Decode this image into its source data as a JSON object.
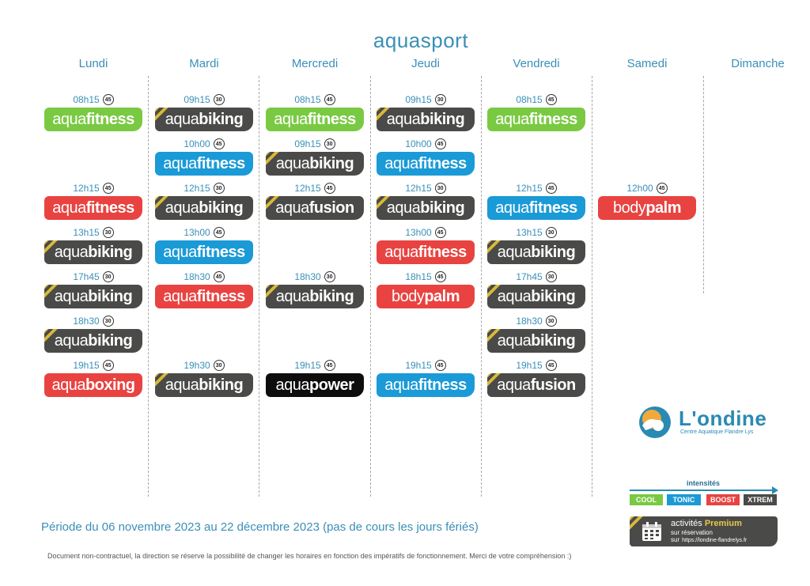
{
  "title": "aquasport",
  "days": [
    "Lundi",
    "Mardi",
    "Mercredi",
    "Jeudi",
    "Vendredi",
    "Samedi",
    "Dimanche"
  ],
  "slots": [
    {
      "day": 0,
      "row": 0,
      "time": "08h15",
      "duration": "45",
      "prefix": "aqua",
      "suffix": "fitness",
      "level": "cool"
    },
    {
      "day": 0,
      "row": 2,
      "time": "12h15",
      "duration": "45",
      "prefix": "aqua",
      "suffix": "fitness",
      "level": "boost"
    },
    {
      "day": 0,
      "row": 3,
      "time": "13h15",
      "duration": "30",
      "prefix": "aqua",
      "suffix": "biking",
      "level": "xtrem"
    },
    {
      "day": 0,
      "row": 4,
      "time": "17h45",
      "duration": "30",
      "prefix": "aqua",
      "suffix": "biking",
      "level": "xtrem"
    },
    {
      "day": 0,
      "row": 5,
      "time": "18h30",
      "duration": "30",
      "prefix": "aqua",
      "suffix": "biking",
      "level": "xtrem"
    },
    {
      "day": 0,
      "row": 6,
      "time": "19h15",
      "duration": "45",
      "prefix": "aqua",
      "suffix": "boxing",
      "level": "boost"
    },
    {
      "day": 1,
      "row": 0,
      "time": "09h15",
      "duration": "30",
      "prefix": "aqua",
      "suffix": "biking",
      "level": "xtrem"
    },
    {
      "day": 1,
      "row": 1,
      "time": "10h00",
      "duration": "45",
      "prefix": "aqua",
      "suffix": "fitness",
      "level": "tonic"
    },
    {
      "day": 1,
      "row": 2,
      "time": "12h15",
      "duration": "30",
      "prefix": "aqua",
      "suffix": "biking",
      "level": "xtrem"
    },
    {
      "day": 1,
      "row": 3,
      "time": "13h00",
      "duration": "45",
      "prefix": "aqua",
      "suffix": "fitness",
      "level": "tonic"
    },
    {
      "day": 1,
      "row": 4,
      "time": "18h30",
      "duration": "45",
      "prefix": "aqua",
      "suffix": "fitness",
      "level": "boost"
    },
    {
      "day": 1,
      "row": 6,
      "time": "19h30",
      "duration": "30",
      "prefix": "aqua",
      "suffix": "biking",
      "level": "xtrem"
    },
    {
      "day": 2,
      "row": 0,
      "time": "08h15",
      "duration": "45",
      "prefix": "aqua",
      "suffix": "fitness",
      "level": "cool"
    },
    {
      "day": 2,
      "row": 1,
      "time": "09h15",
      "duration": "30",
      "prefix": "aqua",
      "suffix": "biking",
      "level": "xtrem"
    },
    {
      "day": 2,
      "row": 2,
      "time": "12h15",
      "duration": "45",
      "prefix": "aqua",
      "suffix": "fusion",
      "level": "xtrem"
    },
    {
      "day": 2,
      "row": 4,
      "time": "18h30",
      "duration": "30",
      "prefix": "aqua",
      "suffix": "biking",
      "level": "xtrem"
    },
    {
      "day": 2,
      "row": 6,
      "time": "19h15",
      "duration": "45",
      "prefix": "aqua",
      "suffix": "power",
      "level": "black"
    },
    {
      "day": 3,
      "row": 0,
      "time": "09h15",
      "duration": "30",
      "prefix": "aqua",
      "suffix": "biking",
      "level": "xtrem"
    },
    {
      "day": 3,
      "row": 1,
      "time": "10h00",
      "duration": "45",
      "prefix": "aqua",
      "suffix": "fitness",
      "level": "tonic"
    },
    {
      "day": 3,
      "row": 2,
      "time": "12h15",
      "duration": "30",
      "prefix": "aqua",
      "suffix": "biking",
      "level": "xtrem"
    },
    {
      "day": 3,
      "row": 3,
      "time": "13h00",
      "duration": "45",
      "prefix": "aqua",
      "suffix": "fitness",
      "level": "boost"
    },
    {
      "day": 3,
      "row": 4,
      "time": "18h15",
      "duration": "45",
      "prefix": "body",
      "suffix": "palm",
      "level": "boost"
    },
    {
      "day": 3,
      "row": 6,
      "time": "19h15",
      "duration": "45",
      "prefix": "aqua",
      "suffix": "fitness",
      "level": "tonic"
    },
    {
      "day": 4,
      "row": 0,
      "time": "08h15",
      "duration": "45",
      "prefix": "aqua",
      "suffix": "fitness",
      "level": "cool"
    },
    {
      "day": 4,
      "row": 2,
      "time": "12h15",
      "duration": "45",
      "prefix": "aqua",
      "suffix": "fitness",
      "level": "tonic"
    },
    {
      "day": 4,
      "row": 3,
      "time": "13h15",
      "duration": "30",
      "prefix": "aqua",
      "suffix": "biking",
      "level": "xtrem"
    },
    {
      "day": 4,
      "row": 4,
      "time": "17h45",
      "duration": "30",
      "prefix": "aqua",
      "suffix": "biking",
      "level": "xtrem"
    },
    {
      "day": 4,
      "row": 5,
      "time": "18h30",
      "duration": "30",
      "prefix": "aqua",
      "suffix": "biking",
      "level": "xtrem"
    },
    {
      "day": 4,
      "row": 6,
      "time": "19h15",
      "duration": "45",
      "prefix": "aqua",
      "suffix": "fusion",
      "level": "xtrem"
    },
    {
      "day": 5,
      "row": 2,
      "time": "12h00",
      "duration": "45",
      "prefix": "body",
      "suffix": "palm",
      "level": "boost"
    }
  ],
  "logo": {
    "name": "L'ondine",
    "subtitle": "Centre Aquatique Flandre Lys"
  },
  "legend": {
    "title": "intensités",
    "levels": [
      {
        "label": "COOL",
        "color": "#7ac943"
      },
      {
        "label": "TONIC",
        "color": "#1a9ad6"
      },
      {
        "label": "BOOST",
        "color": "#e84341"
      },
      {
        "label": "XTREM",
        "color": "#4a4a48"
      }
    ]
  },
  "premium": {
    "title_prefix": "activités",
    "title_bold": "Premium",
    "line2": "sur réservation",
    "line3_label": "sur",
    "line3_url": "https://londine-flandrelys.fr"
  },
  "period": "Période du 06 novembre 2023 au 22 décembre 2023 (pas de cours les jours fériés)",
  "disclaimer": "Document non-contractuel, la direction se réserve la possibilité de changer les horaires en fonction des impératifs de fonctionnement. Merci de votre compréhension :)"
}
